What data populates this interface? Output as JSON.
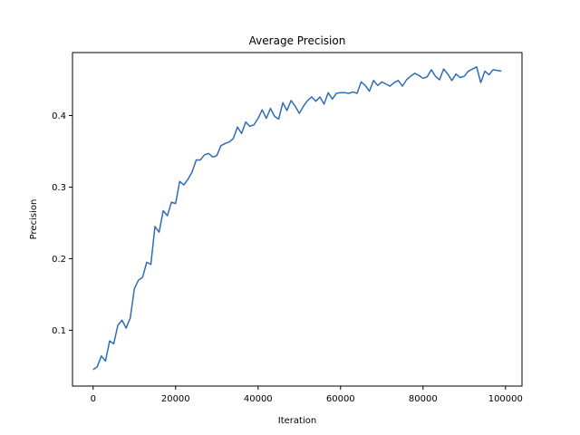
{
  "chart_data": {
    "type": "line",
    "title": "Average Precision",
    "xlabel": "Iteration",
    "ylabel": "Precision",
    "xlim": [
      -5000,
      104000
    ],
    "ylim": [
      0.022,
      0.488
    ],
    "xticks": [
      0,
      20000,
      40000,
      60000,
      80000,
      100000
    ],
    "yticks": [
      0.1,
      0.2,
      0.3,
      0.4
    ],
    "grid": false,
    "legend": "none",
    "line_color": "#2e6db5",
    "series": [
      {
        "x": [
          0,
          1000,
          2000,
          3000,
          4000,
          5000,
          6000,
          7000,
          8000,
          9000,
          10000,
          11000,
          12000,
          13000,
          14000,
          15000,
          16000,
          17000,
          18000,
          19000,
          20000,
          21000,
          22000,
          23000,
          24000,
          25000,
          26000,
          27000,
          28000,
          29000,
          30000,
          31000,
          32000,
          33000,
          34000,
          35000,
          36000,
          37000,
          38000,
          39000,
          40000,
          41000,
          42000,
          43000,
          44000,
          45000,
          46000,
          47000,
          48000,
          49000,
          50000,
          51000,
          52000,
          53000,
          54000,
          55000,
          56000,
          57000,
          58000,
          59000,
          60000,
          61000,
          62000,
          63000,
          64000,
          65000,
          66000,
          67000,
          68000,
          69000,
          70000,
          71000,
          72000,
          73000,
          74000,
          75000,
          76000,
          77000,
          78000,
          79000,
          80000,
          81000,
          82000,
          83000,
          84000,
          85000,
          86000,
          87000,
          88000,
          89000,
          90000,
          91000,
          92000,
          93000,
          94000,
          95000,
          96000,
          97000,
          98000,
          99000
        ],
        "values": [
          0.045,
          0.049,
          0.064,
          0.057,
          0.085,
          0.081,
          0.107,
          0.114,
          0.103,
          0.117,
          0.158,
          0.17,
          0.174,
          0.195,
          0.192,
          0.245,
          0.237,
          0.267,
          0.26,
          0.279,
          0.277,
          0.308,
          0.303,
          0.311,
          0.321,
          0.338,
          0.338,
          0.345,
          0.347,
          0.342,
          0.344,
          0.358,
          0.361,
          0.363,
          0.368,
          0.384,
          0.375,
          0.391,
          0.385,
          0.387,
          0.396,
          0.408,
          0.396,
          0.41,
          0.399,
          0.395,
          0.418,
          0.407,
          0.421,
          0.413,
          0.403,
          0.413,
          0.421,
          0.426,
          0.42,
          0.426,
          0.416,
          0.432,
          0.423,
          0.431,
          0.432,
          0.432,
          0.431,
          0.433,
          0.431,
          0.447,
          0.442,
          0.434,
          0.449,
          0.442,
          0.447,
          0.444,
          0.441,
          0.446,
          0.449,
          0.441,
          0.45,
          0.455,
          0.459,
          0.456,
          0.452,
          0.454,
          0.464,
          0.455,
          0.45,
          0.465,
          0.458,
          0.449,
          0.458,
          0.453,
          0.455,
          0.462,
          0.465,
          0.468,
          0.446,
          0.462,
          0.457,
          0.464,
          0.463,
          0.462
        ]
      }
    ]
  }
}
